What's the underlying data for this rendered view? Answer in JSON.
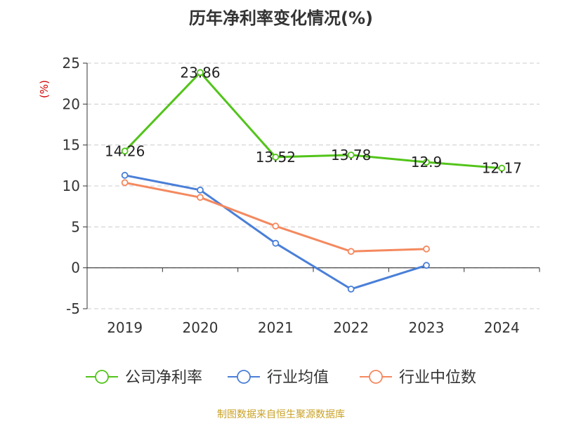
{
  "chart_data": {
    "type": "line",
    "title": "历年净利率变化情况(%)",
    "ylabel": "(%)",
    "xlabel": "",
    "categories": [
      "2019",
      "2020",
      "2021",
      "2022",
      "2023",
      "2024"
    ],
    "ylim": [
      -5,
      25
    ],
    "yticks": [
      25,
      20,
      15,
      10,
      5,
      0,
      -5
    ],
    "grid": true,
    "legend_position": "bottom",
    "series": [
      {
        "name": "公司净利率",
        "color": "#52c41a",
        "values": [
          14.26,
          23.86,
          13.52,
          13.78,
          12.9,
          12.17
        ],
        "labels": [
          "14.26",
          "23.86",
          "13.52",
          "13.78",
          "12.9",
          "12.17"
        ]
      },
      {
        "name": "行业均值",
        "color": "#4a7fd8",
        "values": [
          11.3,
          9.5,
          3.0,
          -2.6,
          0.3,
          null
        ]
      },
      {
        "name": "行业中位数",
        "color": "#f4895f",
        "values": [
          10.4,
          8.6,
          5.1,
          2.0,
          2.3,
          null
        ]
      }
    ]
  },
  "footer": "制图数据来自恒生聚源数据库"
}
